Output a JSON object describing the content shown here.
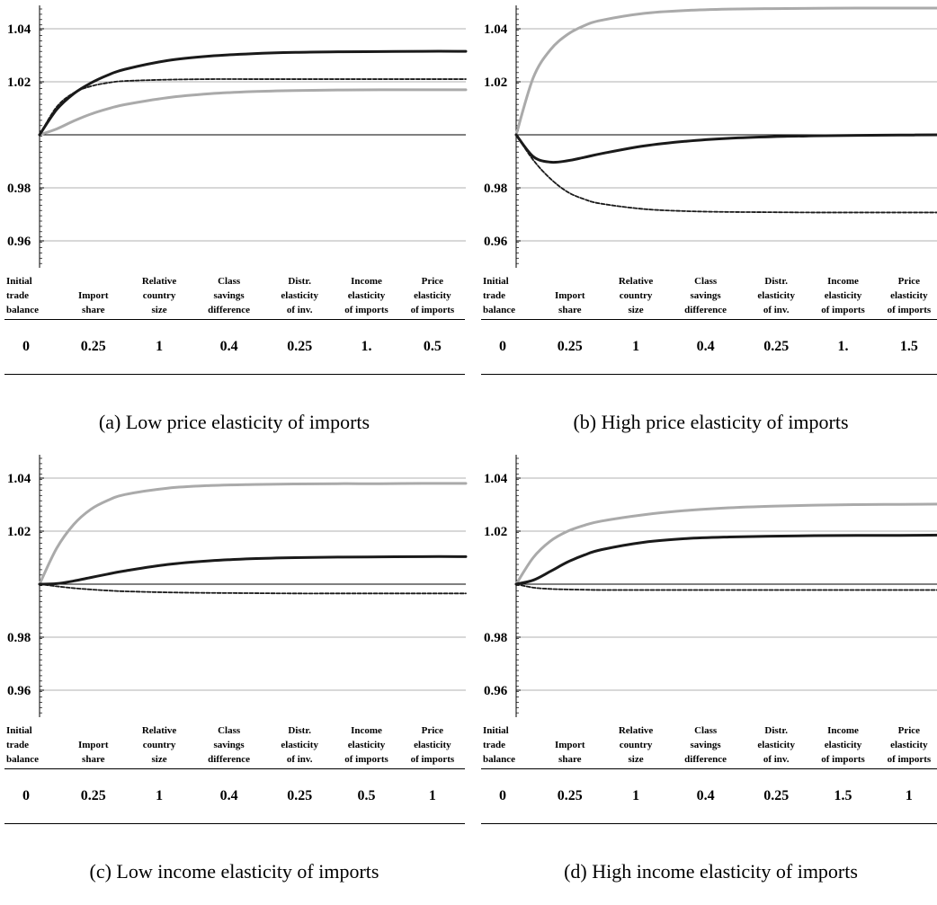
{
  "colors": {
    "black_series": "#1a1a1a",
    "dashed_series": "#1a1a1a",
    "gray_series": "#aaaaaa",
    "grid": "#b0b0b0",
    "baseline": "#000000"
  },
  "param_headers": [
    "Initial\ntrade\nbalance",
    "Import\nshare",
    "Relative\ncountry\nsize",
    "Class\nsavings\ndifference",
    "Distr.\nelasticity\nof inv.",
    "Income\nelasticity\nof imports",
    "Price\nelasticity\nof imports"
  ],
  "chart_data": [
    {
      "type": "line",
      "title": "",
      "xlabel": "",
      "ylabel": "",
      "yticks": [
        "0.96",
        "0.98",
        "1.02",
        "1.04"
      ],
      "ylim": [
        0.94,
        1.05
      ],
      "xlim": [
        0,
        50
      ],
      "grid": true,
      "x": [
        0,
        2,
        4,
        6,
        8,
        10,
        15,
        20,
        25,
        30,
        35,
        40,
        45,
        50
      ],
      "series": [
        {
          "style": "solid-black",
          "values": [
            1.0,
            1.0095,
            1.0155,
            1.0195,
            1.0225,
            1.0247,
            1.028,
            1.0297,
            1.0306,
            1.0311,
            1.0313,
            1.0314,
            1.0315,
            1.0315
          ]
        },
        {
          "style": "dashed-black",
          "values": [
            1.0,
            1.0105,
            1.0158,
            1.0183,
            1.0196,
            1.0203,
            1.0208,
            1.021,
            1.021,
            1.021,
            1.021,
            1.021,
            1.021,
            1.021
          ]
        },
        {
          "style": "solid-gray",
          "values": [
            1.0,
            1.0022,
            1.0052,
            1.0078,
            1.0098,
            1.0114,
            1.014,
            1.0155,
            1.0163,
            1.0167,
            1.0169,
            1.017,
            1.017,
            1.017
          ]
        }
      ],
      "params": [
        "0",
        "0.25",
        "1",
        "0.4",
        "0.25",
        "1.",
        "0.5"
      ],
      "caption": "(a) Low price elasticity of imports"
    },
    {
      "type": "line",
      "title": "",
      "xlabel": "",
      "ylabel": "",
      "yticks": [
        "0.96",
        "0.98",
        "1.02",
        "1.04"
      ],
      "ylim": [
        0.94,
        1.05
      ],
      "xlim": [
        0,
        50
      ],
      "grid": true,
      "x": [
        0,
        2,
        4,
        6,
        8,
        10,
        15,
        20,
        25,
        30,
        35,
        40,
        45,
        50
      ],
      "series": [
        {
          "style": "solid-gray",
          "values": [
            1.0,
            1.0215,
            1.032,
            1.0378,
            1.0412,
            1.0432,
            1.0458,
            1.0469,
            1.0474,
            1.0476,
            1.0477,
            1.0478,
            1.0478,
            1.0478
          ]
        },
        {
          "style": "solid-black",
          "values": [
            1.0,
            0.9918,
            0.9897,
            0.9902,
            0.9915,
            0.9929,
            0.9958,
            0.9976,
            0.9987,
            0.9993,
            0.9996,
            0.9998,
            0.9999,
            1.0
          ]
        },
        {
          "style": "dashed-black",
          "values": [
            1.0,
            0.9905,
            0.9835,
            0.9785,
            0.9757,
            0.974,
            0.972,
            0.9712,
            0.9709,
            0.9708,
            0.9707,
            0.9707,
            0.9707,
            0.9707
          ]
        }
      ],
      "params": [
        "0",
        "0.25",
        "1",
        "0.4",
        "0.25",
        "1.",
        "1.5"
      ],
      "caption": "(b) High price elasticity of imports"
    },
    {
      "type": "line",
      "title": "",
      "xlabel": "",
      "ylabel": "",
      "yticks": [
        "0.96",
        "0.98",
        "1.02",
        "1.04"
      ],
      "ylim": [
        0.94,
        1.05
      ],
      "xlim": [
        0,
        50
      ],
      "grid": true,
      "x": [
        0,
        2,
        4,
        6,
        8,
        10,
        15,
        20,
        25,
        30,
        35,
        40,
        45,
        50
      ],
      "series": [
        {
          "style": "solid-gray",
          "values": [
            1.0,
            1.0135,
            1.0225,
            1.0282,
            1.0316,
            1.0338,
            1.0362,
            1.0372,
            1.0376,
            1.0378,
            1.0379,
            1.0379,
            1.038,
            1.038
          ]
        },
        {
          "style": "solid-black",
          "values": [
            1.0,
            1.0002,
            1.0012,
            1.0025,
            1.0038,
            1.005,
            1.0074,
            1.0088,
            1.0096,
            1.01,
            1.0102,
            1.0103,
            1.0104,
            1.0104
          ]
        },
        {
          "style": "dashed-black",
          "values": [
            1.0,
            0.9992,
            0.9985,
            0.998,
            0.9976,
            0.9973,
            0.9969,
            0.9967,
            0.9966,
            0.9965,
            0.9965,
            0.9965,
            0.9965,
            0.9965
          ]
        }
      ],
      "params": [
        "0",
        "0.25",
        "1",
        "0.4",
        "0.25",
        "0.5",
        "1"
      ],
      "caption": "(c) Low income elasticity of imports"
    },
    {
      "type": "line",
      "title": "",
      "xlabel": "",
      "ylabel": "",
      "yticks": [
        "0.96",
        "0.98",
        "1.02",
        "1.04"
      ],
      "ylim": [
        0.94,
        1.05
      ],
      "xlim": [
        0,
        50
      ],
      "grid": true,
      "x": [
        0,
        2,
        4,
        6,
        8,
        10,
        15,
        20,
        25,
        30,
        35,
        40,
        45,
        50
      ],
      "series": [
        {
          "style": "solid-gray",
          "values": [
            1.0,
            1.01,
            1.0162,
            1.0199,
            1.0222,
            1.0238,
            1.0262,
            1.0278,
            1.0288,
            1.0294,
            1.0298,
            1.03,
            1.0301,
            1.0302
          ]
        },
        {
          "style": "solid-black",
          "values": [
            1.0,
            1.0015,
            1.0048,
            1.0083,
            1.011,
            1.013,
            1.0158,
            1.0172,
            1.0178,
            1.0181,
            1.0183,
            1.0184,
            1.0184,
            1.0185
          ]
        },
        {
          "style": "dashed-black",
          "values": [
            1.0,
            0.9987,
            0.9982,
            0.998,
            0.9979,
            0.9978,
            0.9978,
            0.9978,
            0.9978,
            0.9978,
            0.9978,
            0.9978,
            0.9978,
            0.9978
          ]
        }
      ],
      "params": [
        "0",
        "0.25",
        "1",
        "0.4",
        "0.25",
        "1.5",
        "1"
      ],
      "caption": "(d) High income elasticity of imports"
    }
  ]
}
